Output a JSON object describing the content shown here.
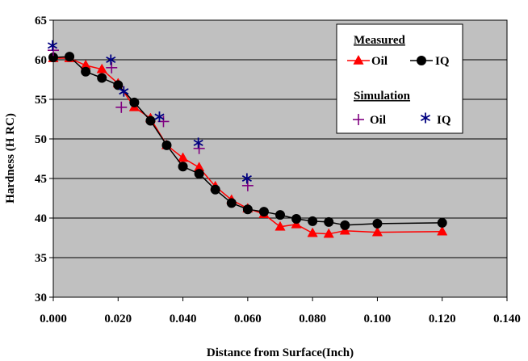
{
  "chart_data": {
    "type": "line",
    "title": "",
    "xlabel": "Distance from Surface(Inch)",
    "ylabel": "Hardness (H RC)",
    "xlim": [
      0,
      0.14
    ],
    "ylim": [
      30,
      65
    ],
    "x_ticks": [
      0,
      0.02,
      0.04,
      0.06,
      0.08,
      0.1,
      0.12,
      0.14
    ],
    "x_tick_labels": [
      "0.000",
      "0.020",
      "0.040",
      "0.060",
      "0.080",
      "0.100",
      "0.120",
      "0.140"
    ],
    "y_ticks": [
      30,
      35,
      40,
      45,
      50,
      55,
      60,
      65
    ],
    "y_tick_labels": [
      "30",
      "35",
      "40",
      "45",
      "50",
      "55",
      "60",
      "65"
    ],
    "grid": "horizontal",
    "legend_position": "top-right",
    "legend": {
      "measured_heading": "Measured",
      "simulation_heading": "Simulation",
      "oil": "Oil",
      "iq": "IQ"
    },
    "colors": {
      "plot_background": "#c0c0c0",
      "oil_measured": "#ff0000",
      "iq_measured": "#000000",
      "oil_simulation": "#800080",
      "iq_simulation": "#000080"
    },
    "series": [
      {
        "name": "Oil",
        "group": "Measured",
        "marker": "triangle",
        "x": [
          0,
          0.005,
          0.01,
          0.015,
          0.02,
          0.025,
          0.03,
          0.035,
          0.04,
          0.045,
          0.05,
          0.055,
          0.06,
          0.065,
          0.07,
          0.075,
          0.08,
          0.085,
          0.09,
          0.1,
          0.12
        ],
        "y": [
          60.2,
          60.2,
          59.3,
          58.8,
          57.0,
          54.0,
          52.6,
          49.2,
          47.6,
          46.4,
          44.0,
          42.3,
          41.2,
          40.5,
          38.9,
          39.2,
          38.1,
          38.0,
          38.4,
          38.2,
          38.3
        ]
      },
      {
        "name": "IQ",
        "group": "Measured",
        "marker": "circle",
        "x": [
          0,
          0.005,
          0.01,
          0.015,
          0.02,
          0.025,
          0.03,
          0.035,
          0.04,
          0.045,
          0.05,
          0.055,
          0.06,
          0.065,
          0.07,
          0.075,
          0.08,
          0.085,
          0.09,
          0.1,
          0.12
        ],
        "y": [
          60.3,
          60.4,
          58.5,
          57.7,
          56.8,
          54.6,
          52.3,
          49.2,
          46.5,
          45.6,
          43.6,
          41.9,
          41.1,
          40.8,
          40.4,
          39.9,
          39.6,
          39.5,
          39.1,
          39.3,
          39.4
        ]
      },
      {
        "name": "Oil",
        "group": "Simulation",
        "marker": "plus",
        "x": [
          0,
          0.018,
          0.021,
          0.034,
          0.045,
          0.06
        ],
        "y": [
          61.2,
          59.0,
          54.0,
          52.2,
          48.8,
          44.1
        ]
      },
      {
        "name": "IQ",
        "group": "Simulation",
        "marker": "asterisk",
        "x": [
          0,
          0.018,
          0.022,
          0.033,
          0.045,
          0.06
        ],
        "y": [
          61.8,
          60.0,
          56.0,
          52.8,
          49.5,
          45.0
        ]
      }
    ]
  }
}
